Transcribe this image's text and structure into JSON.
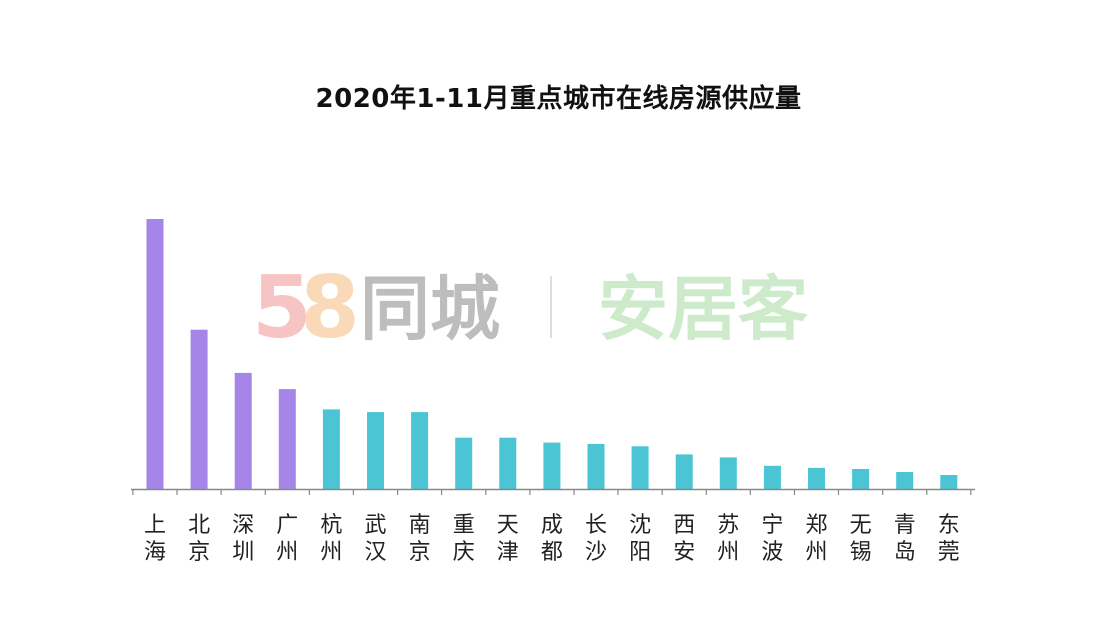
{
  "chart_data": {
    "type": "bar",
    "title": "2020年1-11月重点城市在线房源供应量",
    "xlabel": "",
    "ylabel": "",
    "categories": [
      "上海",
      "北京",
      "深圳",
      "广州",
      "杭州",
      "武汉",
      "南京",
      "重庆",
      "天津",
      "成都",
      "长沙",
      "沈阳",
      "西安",
      "苏州",
      "宁波",
      "郑州",
      "无锡",
      "青岛",
      "东莞"
    ],
    "values": [
      100,
      59,
      43,
      37,
      29.5,
      28.5,
      28.5,
      19,
      19,
      17.2,
      16.7,
      15.8,
      12.8,
      11.7,
      8.6,
      7.8,
      7.4,
      6.3,
      5.2
    ],
    "ylim": [
      0,
      100
    ],
    "grid": false,
    "legend": "none",
    "highlight_count": 4,
    "colors": {
      "highlight": "#A685E8",
      "normal": "#4BC4D4",
      "axis": "#888888"
    }
  },
  "watermark": {
    "logo_number": "58",
    "brand1": "同城",
    "brand2": "安居客",
    "colors": {
      "brand1": "#BDBDBD",
      "brand2": "#CDEBCB",
      "five": "#F6C4C2",
      "eight_a": "#BFE0F3",
      "eight_b": "#FAD9B8"
    }
  }
}
